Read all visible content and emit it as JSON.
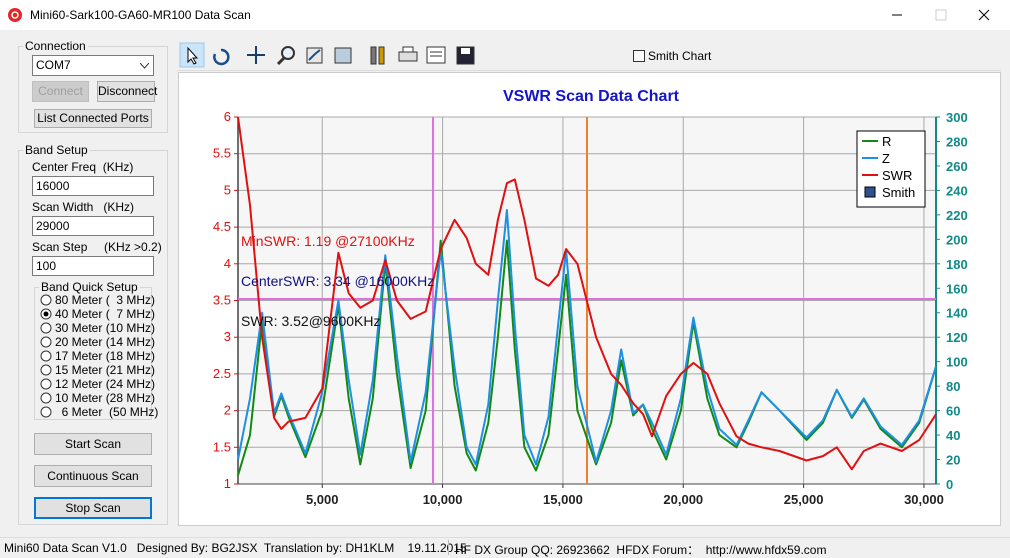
{
  "window": {
    "title": "Mini60-Sark100-GA60-MR100 Data Scan"
  },
  "connection": {
    "title": "Connection",
    "port": "COM7",
    "connect": "Connect",
    "disconnect": "Disconnect",
    "list_ports": "List Connected Ports"
  },
  "band_setup": {
    "title": "Band Setup",
    "center_label": "Center Freq  (KHz)",
    "center": "16000",
    "width_label": "Scan Width   (KHz)",
    "width": "29000",
    "step_label": "Scan Step     (KHz >0.2)",
    "step": "100",
    "quick_title": "Band Quick Setup",
    "bands": [
      "80 Meter (  3 MHz)",
      "40 Meter (  7 MHz)",
      "30 Meter (10 MHz)",
      "20 Meter (14 MHz)",
      "17 Meter (18 MHz)",
      "15 Meter (21 MHz)",
      "12 Meter (24 MHz)",
      "10 Meter (28 MHz)",
      "  6 Meter  (50 MHz)"
    ],
    "selected": 1
  },
  "buttons": {
    "start": "Start Scan",
    "continuous": "Continuous Scan",
    "stop": "Stop Scan"
  },
  "toolbar": {
    "smith_chart": "Smith Chart"
  },
  "chart_data": {
    "type": "line",
    "title": "VSWR Scan Data Chart",
    "x": [
      1500,
      2000,
      2500,
      3000,
      3300,
      3600,
      4300,
      5000,
      5670,
      6100,
      6580,
      7100,
      7620,
      8100,
      8670,
      9300,
      9920,
      10500,
      11000,
      11380,
      11900,
      12300,
      12670,
      13000,
      13400,
      13880,
      14400,
      14800,
      15130,
      15600,
      16380,
      17000,
      17420,
      17920,
      18330,
      18700,
      19290,
      19900,
      20420,
      21000,
      21500,
      22210,
      22700,
      23250,
      24000,
      25120,
      25800,
      26380,
      27000,
      27500,
      28200,
      29080,
      29800,
      30500
    ],
    "xlim": [
      1500,
      30500
    ],
    "xticks": [
      {
        "value": 5000,
        "label": "5,000"
      },
      {
        "value": 10000,
        "label": "10,000"
      },
      {
        "value": 15000,
        "label": "15,000"
      },
      {
        "value": 20000,
        "label": "20,000"
      },
      {
        "value": 25000,
        "label": "25,000"
      },
      {
        "value": 30000,
        "label": "30,000"
      }
    ],
    "ylim": [
      1,
      6
    ],
    "yticks": [
      1,
      1.5,
      2,
      2.5,
      3,
      3.5,
      4,
      4.5,
      5,
      5.5,
      6
    ],
    "y2lim": [
      0,
      300
    ],
    "y2ticks": [
      0,
      20,
      40,
      60,
      80,
      100,
      120,
      140,
      160,
      180,
      200,
      220,
      240,
      260,
      280,
      300
    ],
    "grid": true,
    "legend": "upper right",
    "series": [
      {
        "name": "R",
        "color": "#128a12",
        "axis": "y2",
        "values": [
          7,
          40,
          134,
          55,
          72,
          55,
          22,
          60,
          146,
          70,
          16,
          70,
          181,
          90,
          13,
          60,
          199,
          80,
          25,
          11,
          50,
          120,
          199,
          110,
          30,
          11,
          40,
          110,
          171,
          60,
          16,
          50,
          101,
          56,
          65,
          45,
          20,
          60,
          132,
          70,
          40,
          30,
          50,
          75,
          60,
          36,
          50,
          77,
          54,
          69,
          45,
          30,
          50,
          96
        ]
      },
      {
        "name": "Z",
        "color": "#1e8fe6",
        "axis": "y2",
        "values": [
          20,
          70,
          140,
          58,
          74,
          58,
          25,
          75,
          150,
          85,
          24,
          85,
          187,
          105,
          18,
          75,
          191,
          95,
          30,
          16,
          65,
          150,
          224,
          130,
          40,
          16,
          55,
          130,
          191,
          80,
          18,
          60,
          110,
          58,
          65,
          50,
          24,
          70,
          136,
          78,
          45,
          32,
          52,
          75,
          60,
          38,
          52,
          77,
          55,
          70,
          47,
          32,
          52,
          96
        ]
      },
      {
        "name": "SWR",
        "color": "#e01010",
        "axis": "y",
        "values": [
          6.0,
          4.8,
          3.0,
          1.9,
          1.75,
          1.85,
          1.9,
          2.3,
          4.15,
          3.6,
          3.4,
          3.5,
          4.05,
          3.5,
          3.25,
          3.35,
          4.2,
          4.6,
          4.35,
          4.0,
          3.85,
          4.6,
          5.1,
          5.15,
          4.6,
          3.8,
          3.7,
          3.85,
          4.2,
          4.0,
          3.0,
          2.5,
          2.35,
          2.1,
          1.95,
          1.65,
          2.2,
          2.5,
          2.65,
          2.5,
          2.1,
          1.65,
          1.55,
          1.5,
          1.45,
          1.32,
          1.38,
          1.5,
          1.2,
          1.45,
          1.55,
          1.45,
          1.6,
          1.95
        ]
      }
    ],
    "legend_extra": {
      "name": "Smith",
      "color": "#2f4f8f"
    },
    "y_color": "#e01010",
    "y2_color": "#128a8a",
    "annotations": [
      {
        "text": "MinSWR: 1.19 @27100KHz",
        "color": "#e01010"
      },
      {
        "text": "CenterSWR: 3.34 @16000KHz",
        "color": "#101080"
      },
      {
        "text": "SWR: 3.52@9600KHz",
        "color": "#101010"
      }
    ],
    "cursors": {
      "x": [
        9600,
        16000
      ],
      "x_colors": [
        "#e070e0",
        "#f08030"
      ],
      "y": 3.52,
      "y_color": "#e070e0"
    }
  },
  "status": {
    "left": "Mini60 Data Scan V1.0   Designed By: BG2JSX  Translation by: DH1KLM    19.11.2015",
    "right": "HF DX Group QQ: 26923662  HFDX Forum：  http://www.hfdx59.com"
  }
}
